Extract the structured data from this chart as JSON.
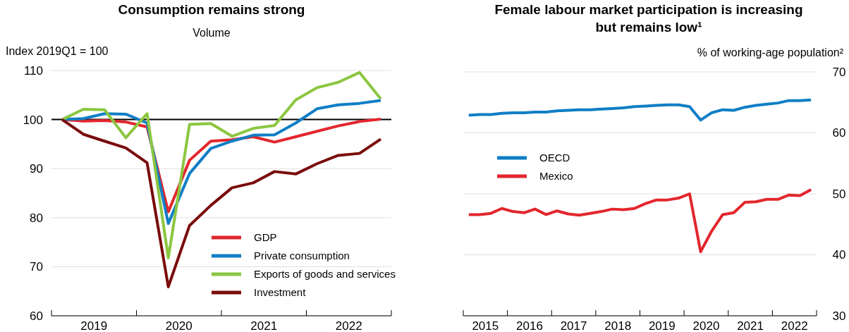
{
  "chart_data": [
    {
      "type": "line",
      "title": "Consumption remains strong",
      "subtitle": "Volume",
      "ylabel": "Index 2019Q1 = 100",
      "x": [
        2019.125,
        2019.375,
        2019.625,
        2019.875,
        2020.125,
        2020.375,
        2020.625,
        2020.875,
        2021.125,
        2021.375,
        2021.625,
        2021.875,
        2022.125,
        2022.375,
        2022.625,
        2022.875
      ],
      "xlim": [
        2019,
        2023
      ],
      "xticks": [
        {
          "value": 2019,
          "label": null
        },
        {
          "value": 2019.5,
          "label": "2019"
        },
        {
          "value": 2020,
          "label": null
        },
        {
          "value": 2020.5,
          "label": "2020"
        },
        {
          "value": 2021,
          "label": null
        },
        {
          "value": 2021.5,
          "label": "2021"
        },
        {
          "value": 2022,
          "label": null
        },
        {
          "value": 2022.5,
          "label": "2022"
        },
        {
          "value": 2023,
          "label": null
        }
      ],
      "ylim": [
        60,
        110
      ],
      "yticks": [
        60,
        70,
        80,
        90,
        100,
        110
      ],
      "grid": "y",
      "legend": "bottom right",
      "ref_lines": [
        {
          "axis": "y",
          "value": 100,
          "label": null,
          "color": "#000000"
        }
      ],
      "series": [
        {
          "name": "GDP",
          "color": "#e3262d",
          "values": [
            100,
            99.7,
            99.8,
            99.5,
            98.5,
            81.2,
            91.7,
            95.6,
            95.9,
            96.5,
            95.4,
            96.5,
            97.6,
            98.7,
            99.6,
            100.1
          ]
        },
        {
          "name": "Private consumption",
          "color": "#0f7ec5",
          "values": [
            100,
            100.2,
            101.2,
            101.1,
            99.3,
            78.8,
            89.0,
            94.1,
            95.6,
            96.8,
            96.9,
            99.3,
            102.2,
            103.0,
            103.3,
            103.9
          ]
        },
        {
          "name": "Exports of goods and services",
          "color": "#8cc641",
          "values": [
            100,
            102.1,
            102.0,
            96.3,
            101.2,
            71.8,
            99.0,
            99.2,
            96.6,
            98.2,
            98.8,
            104.0,
            106.5,
            107.6,
            109.6,
            104.2
          ]
        },
        {
          "name": "Investment",
          "color": "#7a0c0c",
          "values": [
            100,
            97.0,
            95.6,
            94.2,
            91.2,
            65.9,
            78.4,
            82.5,
            86.1,
            87.1,
            89.4,
            88.9,
            91.0,
            92.7,
            93.1,
            96.0
          ]
        }
      ]
    },
    {
      "type": "line",
      "title": "Female labour market participation is increasing but remains low¹",
      "ylabel": "% of working-age population²",
      "x": [
        2015.125,
        2015.375,
        2015.625,
        2015.875,
        2016.125,
        2016.375,
        2016.625,
        2016.875,
        2017.125,
        2017.375,
        2017.625,
        2017.875,
        2018.125,
        2018.375,
        2018.625,
        2018.875,
        2019.125,
        2019.375,
        2019.625,
        2019.875,
        2020.125,
        2020.375,
        2020.625,
        2020.875,
        2021.125,
        2021.375,
        2021.625,
        2021.875,
        2022.125,
        2022.375,
        2022.625,
        2022.875
      ],
      "xlim": [
        2015,
        2023
      ],
      "xticks": [
        {
          "value": 2015,
          "label": null
        },
        {
          "value": 2015.5,
          "label": "2015"
        },
        {
          "value": 2016,
          "label": null
        },
        {
          "value": 2016.5,
          "label": "2016"
        },
        {
          "value": 2017,
          "label": null
        },
        {
          "value": 2017.5,
          "label": "2017"
        },
        {
          "value": 2018,
          "label": null
        },
        {
          "value": 2018.5,
          "label": "2018"
        },
        {
          "value": 2019,
          "label": null
        },
        {
          "value": 2019.5,
          "label": "2019"
        },
        {
          "value": 2020,
          "label": null
        },
        {
          "value": 2020.5,
          "label": "2020"
        },
        {
          "value": 2021,
          "label": null
        },
        {
          "value": 2021.5,
          "label": "2021"
        },
        {
          "value": 2022,
          "label": null
        },
        {
          "value": 2022.5,
          "label": "2022"
        },
        {
          "value": 2023,
          "label": null
        }
      ],
      "ylim": [
        30,
        70
      ],
      "yticks": [
        30,
        40,
        50,
        60,
        70
      ],
      "grid": "y",
      "legend": "left",
      "series": [
        {
          "name": "OECD",
          "color": "#0f7ec5",
          "values": [
            62.9,
            63.0,
            63.0,
            63.2,
            63.3,
            63.3,
            63.4,
            63.4,
            63.6,
            63.7,
            63.8,
            63.8,
            63.9,
            64.0,
            64.1,
            64.3,
            64.4,
            64.5,
            64.6,
            64.6,
            64.3,
            62.1,
            63.3,
            63.8,
            63.7,
            64.2,
            64.5,
            64.7,
            64.9,
            65.3,
            65.3,
            65.4
          ]
        },
        {
          "name": "Mexico",
          "color": "#e3262d",
          "values": [
            46.6,
            46.6,
            46.8,
            47.6,
            47.1,
            46.9,
            47.5,
            46.6,
            47.2,
            46.7,
            46.5,
            46.8,
            47.1,
            47.5,
            47.4,
            47.6,
            48.4,
            49.0,
            49.0,
            49.3,
            50.0,
            40.5,
            43.9,
            46.6,
            46.9,
            48.6,
            48.7,
            49.1,
            49.1,
            49.8,
            49.7,
            50.7
          ]
        }
      ]
    }
  ]
}
